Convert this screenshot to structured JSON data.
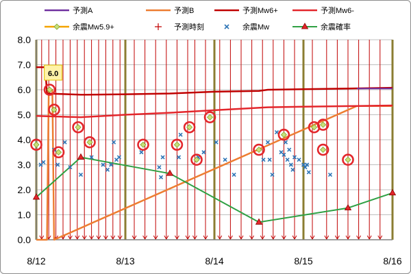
{
  "chart_data": {
    "type": "line",
    "xlim": [
      0,
      4
    ],
    "ylim": [
      0,
      8
    ],
    "x_ticks": [
      0,
      1,
      2,
      3,
      4
    ],
    "x_tick_labels": [
      "8/12",
      "8/13",
      "8/14",
      "8/15",
      "8/16"
    ],
    "y_ticks": [
      0,
      1,
      2,
      3,
      4,
      5,
      6,
      7,
      8
    ],
    "y_tick_labels": [
      "0.0",
      "1.0",
      "2.0",
      "3.0",
      "4.0",
      "5.0",
      "6.0",
      "7.0",
      "8.0"
    ],
    "grid": true,
    "legend_position": "top",
    "colors": {
      "forecast_a": "#7030a0",
      "forecast_b": "#ed7d31",
      "mw6plus": "#c00000",
      "mw6minus": "#e3262b",
      "aftershock_big": "#9bbb59",
      "forecast_time": "#c00000",
      "aftershock_mw": "#2e75b6",
      "probability": "#2ea043",
      "day_line": "#8b7d32"
    },
    "legend": [
      {
        "key": "forecast_a",
        "label": "予測A"
      },
      {
        "key": "forecast_b",
        "label": "予測B"
      },
      {
        "key": "mw6plus",
        "label": "予測Mw6+"
      },
      {
        "key": "mw6minus",
        "label": "予測Mw6-"
      },
      {
        "key": "aftershock_big",
        "label": "余震Mw5.9+"
      },
      {
        "key": "forecast_time",
        "label": "予測時刻"
      },
      {
        "key": "aftershock_mw",
        "label": "余震Mw"
      },
      {
        "key": "probability",
        "label": "余震確率"
      }
    ],
    "annotation": {
      "text": "6.0",
      "x": 0.12,
      "y": 6.0
    },
    "series": [
      {
        "key": "forecast_a",
        "name": "予測A",
        "points": [
          [
            3.6,
            6.05
          ],
          [
            4.0,
            6.05
          ]
        ]
      },
      {
        "key": "forecast_b",
        "name": "予測B",
        "points": [
          [
            0.0,
            0.0
          ],
          [
            0.12,
            0.0
          ],
          [
            0.14,
            6.0
          ],
          [
            0.18,
            6.0
          ],
          [
            0.2,
            0.0
          ],
          [
            3.6,
            5.35
          ],
          [
            4.0,
            5.35
          ]
        ]
      },
      {
        "key": "mw6plus",
        "name": "予測Mw6+",
        "points": [
          [
            0.0,
            6.9
          ],
          [
            0.1,
            6.9
          ],
          [
            0.12,
            5.85
          ],
          [
            0.5,
            5.8
          ],
          [
            1.0,
            5.82
          ],
          [
            1.5,
            5.85
          ],
          [
            2.0,
            5.92
          ],
          [
            2.5,
            5.95
          ],
          [
            2.6,
            6.0
          ],
          [
            3.5,
            6.05
          ],
          [
            4.0,
            6.08
          ]
        ]
      },
      {
        "key": "mw6minus",
        "name": "予測Mw6-",
        "points": [
          [
            0.0,
            4.95
          ],
          [
            0.5,
            4.9
          ],
          [
            1.0,
            5.0
          ],
          [
            1.5,
            5.08
          ],
          [
            2.0,
            5.18
          ],
          [
            2.6,
            5.3
          ],
          [
            3.0,
            5.32
          ],
          [
            3.6,
            5.35
          ],
          [
            4.0,
            5.37
          ]
        ]
      },
      {
        "key": "probability",
        "name": "余震確率",
        "points": [
          [
            0.0,
            1.7
          ],
          [
            0.5,
            3.3
          ],
          [
            1.5,
            2.65
          ],
          [
            2.5,
            0.7
          ],
          [
            3.5,
            1.27
          ],
          [
            4.0,
            1.87
          ]
        ]
      }
    ],
    "forecast_times": [
      0.06,
      0.14,
      0.22,
      0.3,
      0.38,
      0.46,
      0.54,
      0.62,
      0.7,
      0.78,
      0.86,
      0.94,
      1.1,
      1.22,
      1.34,
      1.46,
      1.58,
      1.7,
      1.78,
      1.9,
      2.06,
      2.18,
      2.3,
      2.42,
      2.54,
      2.66,
      2.78,
      2.9,
      3.1,
      3.26,
      3.38,
      3.5,
      3.62,
      3.74,
      3.86
    ],
    "aftershocks_mw": [
      [
        0.05,
        3.0
      ],
      [
        0.08,
        3.1
      ],
      [
        0.2,
        3.6
      ],
      [
        0.24,
        3.0
      ],
      [
        0.32,
        3.9
      ],
      [
        0.38,
        2.9
      ],
      [
        0.5,
        2.6
      ],
      [
        0.62,
        3.3
      ],
      [
        0.75,
        3.0
      ],
      [
        0.8,
        2.8
      ],
      [
        0.84,
        3.0
      ],
      [
        0.87,
        3.9
      ],
      [
        0.9,
        3.2
      ],
      [
        0.93,
        3.3
      ],
      [
        1.18,
        3.5
      ],
      [
        1.38,
        2.9
      ],
      [
        1.4,
        2.5
      ],
      [
        1.42,
        3.3
      ],
      [
        1.6,
        3.3
      ],
      [
        1.62,
        4.2
      ],
      [
        1.82,
        3.3
      ],
      [
        1.88,
        3.5
      ],
      [
        2.02,
        3.9
      ],
      [
        2.12,
        3.2
      ],
      [
        2.22,
        2.6
      ],
      [
        2.55,
        3.2
      ],
      [
        2.6,
        3.9
      ],
      [
        2.62,
        3.2
      ],
      [
        2.65,
        2.6
      ],
      [
        2.7,
        4.3
      ],
      [
        2.75,
        3.5
      ],
      [
        2.78,
        3.4
      ],
      [
        2.8,
        3.9
      ],
      [
        2.82,
        3.2
      ],
      [
        2.84,
        3.6
      ],
      [
        2.86,
        3.0
      ],
      [
        2.88,
        2.8
      ],
      [
        2.9,
        3.3
      ],
      [
        2.95,
        3.2
      ],
      [
        3.0,
        3.0
      ],
      [
        3.02,
        2.9
      ],
      [
        3.04,
        3.0
      ],
      [
        3.06,
        2.7
      ],
      [
        3.3,
        2.6
      ]
    ],
    "aftershocks_big": [
      [
        0.0,
        3.8
      ],
      [
        0.15,
        6.0
      ],
      [
        0.2,
        5.2
      ],
      [
        0.25,
        3.5
      ],
      [
        0.47,
        4.5
      ],
      [
        0.6,
        3.9
      ],
      [
        1.2,
        3.8
      ],
      [
        1.58,
        3.8
      ],
      [
        1.72,
        4.5
      ],
      [
        1.8,
        3.2
      ],
      [
        1.95,
        4.9
      ],
      [
        2.5,
        3.6
      ],
      [
        2.78,
        4.2
      ],
      [
        3.12,
        4.5
      ],
      [
        3.22,
        4.6
      ],
      [
        3.22,
        3.6
      ],
      [
        3.5,
        3.2
      ]
    ]
  }
}
